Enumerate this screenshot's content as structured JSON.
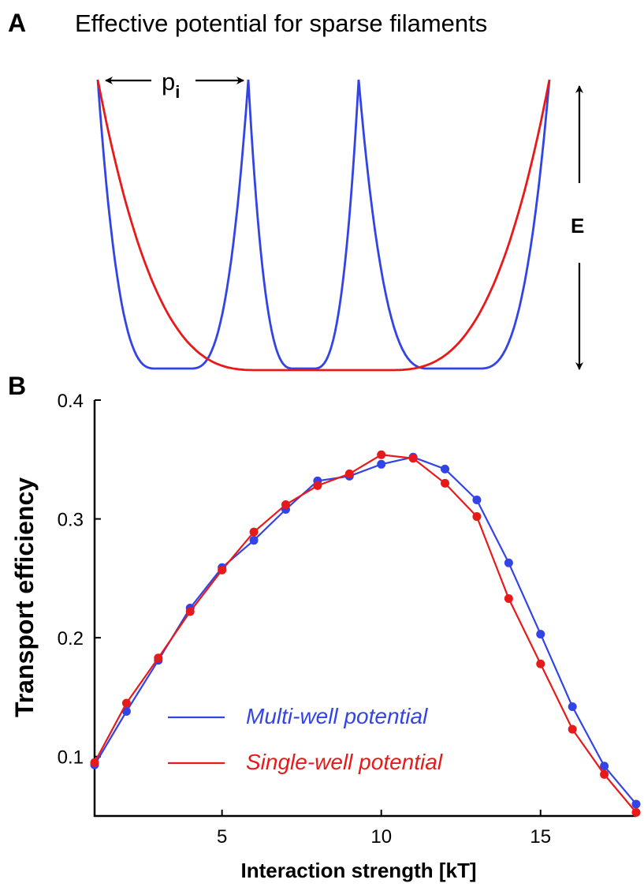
{
  "panel_a": {
    "letter": "A",
    "title": "Effective potential for sparse filaments",
    "spacing_label": "p",
    "spacing_subscript": "i",
    "energy_label": "E",
    "colors": {
      "multi": "#3344e6",
      "single": "#e81919"
    }
  },
  "panel_b": {
    "letter": "B"
  },
  "chart_data": {
    "type": "line",
    "title": "",
    "xlabel": "Interaction strength [kT]",
    "ylabel": "Transport efficiency",
    "xlim": [
      1,
      18
    ],
    "ylim": [
      0.05,
      0.4
    ],
    "xticks": [
      "5",
      "10",
      "15"
    ],
    "yticks": [
      "0.1",
      "0.2",
      "0.3",
      "0.4"
    ],
    "legend_position": "bottom-center",
    "series": [
      {
        "name": "Multi-well potential",
        "color": "#3344e6",
        "x": [
          1,
          2,
          3,
          4,
          5,
          6,
          7,
          8,
          9,
          10,
          11,
          12,
          13,
          14,
          15,
          16,
          17,
          18
        ],
        "values": [
          0.093,
          0.138,
          0.181,
          0.225,
          0.259,
          0.282,
          0.308,
          0.332,
          0.336,
          0.346,
          0.352,
          0.342,
          0.316,
          0.263,
          0.203,
          0.142,
          0.092,
          0.06
        ]
      },
      {
        "name": "Single-well potential",
        "color": "#e81919",
        "x": [
          1,
          2,
          3,
          4,
          5,
          6,
          7,
          8,
          9,
          10,
          11,
          12,
          13,
          14,
          15,
          16,
          17,
          18
        ],
        "values": [
          0.095,
          0.145,
          0.183,
          0.222,
          0.257,
          0.289,
          0.312,
          0.328,
          0.338,
          0.354,
          0.351,
          0.33,
          0.302,
          0.233,
          0.178,
          0.123,
          0.085,
          0.053
        ]
      }
    ]
  }
}
